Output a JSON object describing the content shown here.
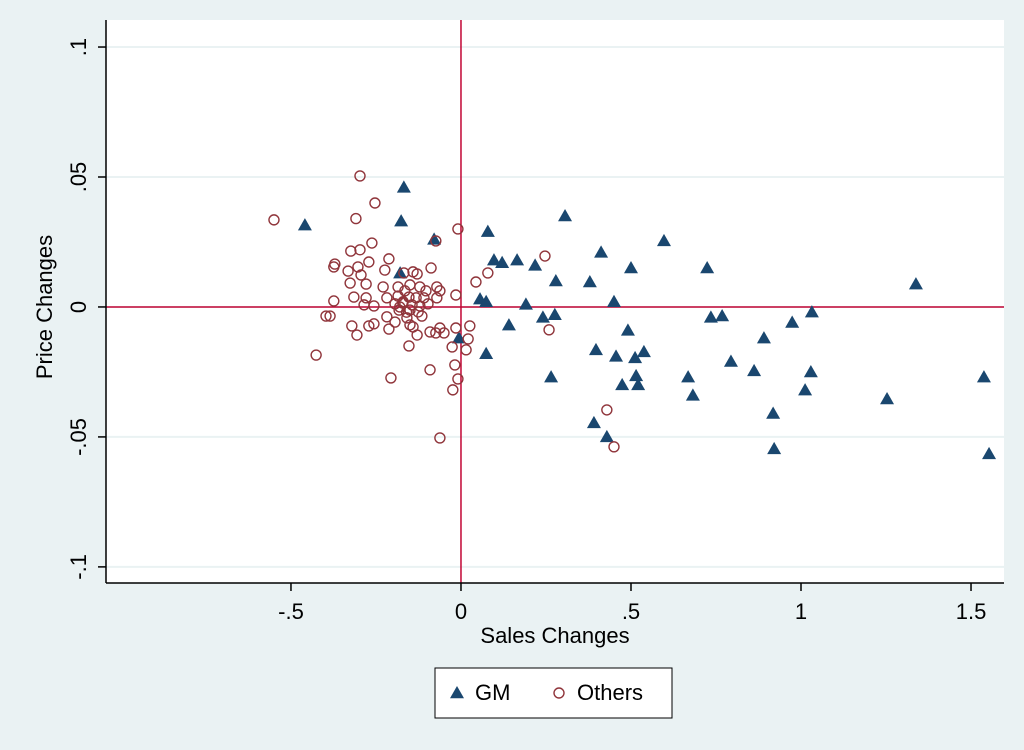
{
  "chart_data": {
    "type": "scatter",
    "xlabel": "Sales Changes",
    "ylabel": "Price Changes",
    "xlim": [
      -1.044,
      1.597
    ],
    "ylim": [
      -0.1062,
      0.1104
    ],
    "xticks": [
      {
        "value": -0.5,
        "label": "-.5"
      },
      0,
      {
        "value": 0.5,
        "label": ".5"
      },
      1,
      1.5
    ],
    "yticks": [
      {
        "value": 0.1,
        "label": ".1"
      },
      {
        "value": 0.05,
        "label": ".05"
      },
      0,
      {
        "value": -0.05,
        "label": "-.05"
      },
      {
        "value": -0.1,
        "label": "-.1"
      }
    ],
    "grid": true,
    "xline": 0,
    "yline": 0,
    "line_color": "#c10534",
    "legend": "bottom",
    "series": [
      {
        "name": "GM",
        "color": "#1a476f",
        "marker": "triangle",
        "x": [
          -0.459,
          -0.168,
          -0.176,
          -0.079,
          -0.179,
          -0.006,
          0.079,
          0.097,
          0.121,
          0.165,
          0.218,
          0.306,
          0.056,
          0.074,
          0.074,
          0.141,
          0.191,
          0.241,
          0.276,
          0.279,
          0.265,
          0.379,
          0.412,
          0.45,
          0.397,
          0.391,
          0.429,
          0.456,
          0.474,
          0.491,
          0.5,
          0.512,
          0.515,
          0.521,
          0.538,
          0.597,
          0.668,
          0.682,
          0.724,
          0.735,
          0.768,
          0.794,
          0.862,
          0.891,
          0.918,
          0.921,
          0.974,
          1.012,
          1.029,
          1.032,
          1.253,
          1.338,
          1.538,
          1.553
        ],
        "values": [
          0.0315,
          0.046,
          0.033,
          0.026,
          0.013,
          -0.012,
          0.029,
          0.018,
          0.017,
          0.018,
          0.016,
          0.035,
          0.003,
          0.002,
          -0.018,
          -0.007,
          0.001,
          -0.004,
          -0.003,
          0.01,
          -0.027,
          0.0096,
          0.021,
          0.002,
          -0.0165,
          -0.0446,
          -0.05,
          -0.019,
          -0.03,
          -0.009,
          0.015,
          -0.0196,
          -0.0265,
          -0.03,
          -0.0173,
          0.0254,
          -0.027,
          -0.034,
          0.015,
          -0.004,
          -0.0035,
          -0.021,
          -0.0246,
          -0.012,
          -0.041,
          -0.0546,
          -0.006,
          -0.032,
          -0.025,
          -0.002,
          -0.0354,
          0.0088,
          -0.027,
          -0.0565
        ]
      },
      {
        "name": "Others",
        "color": "#90353b",
        "marker": "circle",
        "x": [
          -0.55,
          -0.297,
          -0.253,
          -0.309,
          -0.009,
          -0.074,
          0.247,
          -0.324,
          -0.297,
          -0.262,
          -0.212,
          -0.271,
          -0.371,
          -0.374,
          -0.303,
          -0.332,
          -0.294,
          -0.224,
          -0.168,
          -0.141,
          -0.129,
          -0.088,
          0.079,
          0.044,
          -0.326,
          -0.279,
          -0.229,
          -0.185,
          -0.15,
          -0.121,
          -0.071,
          -0.165,
          -0.103,
          -0.062,
          -0.015,
          -0.315,
          -0.279,
          -0.218,
          -0.185,
          -0.153,
          -0.132,
          -0.109,
          -0.071,
          -0.374,
          -0.285,
          -0.256,
          -0.194,
          -0.171,
          -0.144,
          -0.121,
          -0.097,
          -0.182,
          -0.15,
          -0.126,
          -0.385,
          -0.397,
          -0.218,
          -0.159,
          -0.115,
          -0.194,
          -0.256,
          -0.271,
          -0.321,
          -0.15,
          -0.141,
          -0.062,
          -0.015,
          0.026,
          -0.212,
          -0.091,
          -0.074,
          -0.05,
          -0.306,
          -0.129,
          0.021,
          0.259,
          -0.153,
          -0.026,
          0.015,
          -0.426,
          -0.018,
          -0.091,
          -0.206,
          -0.009,
          -0.024,
          0.429,
          -0.062,
          0.45,
          -0.18,
          -0.17,
          -0.16
        ],
        "values": [
          0.0335,
          0.0504,
          0.04,
          0.034,
          0.03,
          0.0254,
          0.0196,
          0.0215,
          0.022,
          0.0246,
          0.0185,
          0.0173,
          0.0165,
          0.0154,
          0.0154,
          0.0138,
          0.0123,
          0.0142,
          0.0131,
          0.0135,
          0.0127,
          0.015,
          0.0131,
          0.0096,
          0.0092,
          0.0088,
          0.0077,
          0.0077,
          0.0085,
          0.0077,
          0.0077,
          0.0062,
          0.0062,
          0.0062,
          0.0046,
          0.0038,
          0.0035,
          0.0035,
          0.0042,
          0.0038,
          0.0035,
          0.0035,
          0.0035,
          0.0023,
          0.0008,
          0.0004,
          0.0012,
          0.0015,
          0.0008,
          0.0004,
          0.0012,
          -0.0012,
          -0.0012,
          -0.0019,
          -0.0035,
          -0.0035,
          -0.0038,
          -0.0042,
          -0.0035,
          -0.0058,
          -0.0065,
          -0.0073,
          -0.0073,
          -0.0069,
          -0.0077,
          -0.0081,
          -0.0081,
          -0.0073,
          -0.0085,
          -0.0096,
          -0.01,
          -0.01,
          -0.0108,
          -0.0108,
          -0.0123,
          -0.0088,
          -0.015,
          -0.0154,
          -0.0165,
          -0.0185,
          -0.0223,
          -0.0242,
          -0.0273,
          -0.0277,
          -0.0319,
          -0.0396,
          -0.0504,
          -0.0538,
          0.0,
          0.002,
          -0.002
        ]
      }
    ]
  }
}
